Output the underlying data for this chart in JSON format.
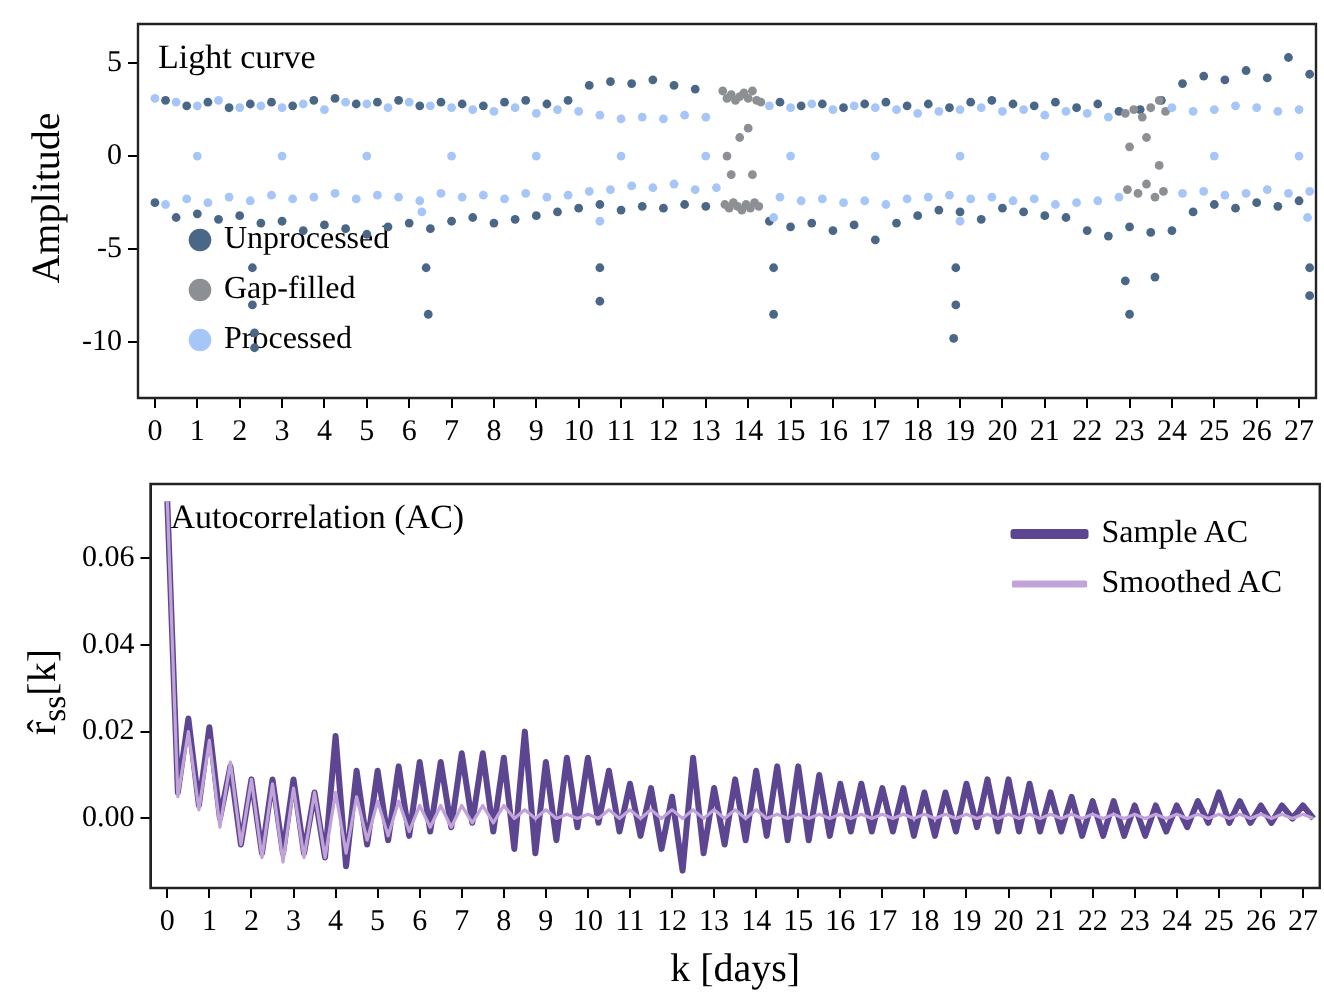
{
  "chart_data": [
    {
      "type": "scatter",
      "annotations": [
        "Light curve"
      ],
      "ylabel": "Amplitude",
      "xlim": [
        -0.4,
        27.4
      ],
      "xticks": [
        0,
        1,
        2,
        3,
        4,
        5,
        6,
        7,
        8,
        9,
        10,
        11,
        12,
        13,
        14,
        15,
        16,
        17,
        18,
        19,
        20,
        21,
        22,
        23,
        24,
        25,
        26,
        27
      ],
      "ylim": [
        -13,
        7.1
      ],
      "yticks": [
        -10,
        -5,
        0,
        5
      ],
      "legend": "bottom left",
      "marker": "circle",
      "series": [
        {
          "name": "Unprocessed",
          "color": "#4a6787",
          "x": [
            0.25,
            0.75,
            1.25,
            1.75,
            2.25,
            2.75,
            3.25,
            3.75,
            4.25,
            4.75,
            5.25,
            5.75,
            6.25,
            6.75,
            7.25,
            7.75,
            8.25,
            8.75,
            9.25,
            9.75,
            10.25,
            10.75,
            11.25,
            11.75,
            12.25,
            12.75,
            14.75,
            15.25,
            15.75,
            16.25,
            16.75,
            17.25,
            17.75,
            18.25,
            18.75,
            19.25,
            19.75,
            20.25,
            20.75,
            21.25,
            21.75,
            22.25,
            22.75,
            23.25,
            23.75,
            24.25,
            24.75,
            25.25,
            25.75,
            26.25,
            26.75,
            27.25,
            0,
            0.5,
            1,
            1.5,
            2,
            2.5,
            3,
            3.5,
            4,
            4.5,
            5,
            5.5,
            6,
            6.5,
            7,
            7.5,
            8,
            8.5,
            9,
            9.5,
            10,
            10.5,
            11,
            11.5,
            12,
            12.5,
            13,
            14.5,
            15,
            15.5,
            16,
            16.5,
            17,
            17.5,
            18,
            18.5,
            19,
            19.5,
            20,
            20.5,
            21,
            21.5,
            22,
            22.5,
            23,
            23.5,
            24,
            24.5,
            25,
            25.5,
            26,
            26.5,
            27,
            2.3,
            2.3,
            2.35,
            2.35,
            6.4,
            6.45,
            10.5,
            10.5,
            14.6,
            14.6,
            18.9,
            18.9,
            18.85,
            22.9,
            23.0,
            23.6,
            27.25,
            27.25
          ],
          "values": [
            3.0,
            2.7,
            2.9,
            2.6,
            2.8,
            2.9,
            2.7,
            3.0,
            3.1,
            2.8,
            2.9,
            3.0,
            2.7,
            2.9,
            2.8,
            2.7,
            2.9,
            3.0,
            2.8,
            3.0,
            3.8,
            4.0,
            3.9,
            4.1,
            3.8,
            3.6,
            2.9,
            2.7,
            2.8,
            2.6,
            2.8,
            2.9,
            2.7,
            2.8,
            2.6,
            2.9,
            3.0,
            2.8,
            2.7,
            2.9,
            2.6,
            2.8,
            2.4,
            2.5,
            3.0,
            3.9,
            4.3,
            4.1,
            4.6,
            4.2,
            5.3,
            4.4,
            -2.5,
            -3.3,
            -3.1,
            -3.4,
            -3.2,
            -3.6,
            -3.5,
            -4.0,
            -3.7,
            -3.9,
            -4.2,
            -3.8,
            -3.6,
            -3.9,
            -3.5,
            -3.3,
            -3.6,
            -3.4,
            -3.2,
            -3.0,
            -2.8,
            -2.6,
            -2.9,
            -2.7,
            -2.8,
            -2.6,
            -2.7,
            -3.5,
            -3.8,
            -3.6,
            -4.0,
            -3.7,
            -4.5,
            -3.6,
            -3.2,
            -2.9,
            -3.0,
            -3.4,
            -2.8,
            -3.0,
            -3.2,
            -3.3,
            -4.0,
            -4.3,
            -3.8,
            -4.1,
            -4.0,
            -3.0,
            -2.6,
            -2.8,
            -2.5,
            -2.7,
            -2.4,
            -6,
            -8,
            -9.5,
            -10.3,
            -6,
            -8.5,
            -6,
            -7.8,
            -6,
            -8.5,
            -6,
            -8,
            -9.8,
            -6.7,
            -8.5,
            -6.5,
            -6,
            -7.5
          ]
        },
        {
          "name": "Gap-filled",
          "color": "#8c8f94",
          "x": [
            13.4,
            13.5,
            13.6,
            13.7,
            13.8,
            13.9,
            14.0,
            14.1,
            14.2,
            14.3,
            13.45,
            13.55,
            13.65,
            13.75,
            13.85,
            13.95,
            14.05,
            14.15,
            14.25,
            13.5,
            13.8,
            14.1,
            13.6,
            14.0,
            22.9,
            23.1,
            23.3,
            23.5,
            23.7,
            23.85,
            22.95,
            23.2,
            23.4,
            23.6,
            23.8,
            23.0,
            23.4,
            23.7
          ],
          "values": [
            3.5,
            3.1,
            3.3,
            3.0,
            3.2,
            3.4,
            3.1,
            3.5,
            3.0,
            2.9,
            -2.6,
            -2.8,
            -2.5,
            -2.7,
            -2.9,
            -2.6,
            -2.8,
            -2.5,
            -2.7,
            0,
            1,
            -1,
            -1,
            1.5,
            2.3,
            2.5,
            2.1,
            2.6,
            3.0,
            2.4,
            -1.8,
            -2.0,
            -1.5,
            -2.2,
            -1.9,
            0.5,
            1.0,
            -0.5
          ]
        },
        {
          "name": "Processed",
          "color": "#a6c6f8",
          "x": [
            0,
            0.5,
            1,
            1.5,
            2,
            2.5,
            3,
            3.5,
            4,
            4.5,
            5,
            5.5,
            6,
            6.5,
            7,
            7.5,
            8,
            8.5,
            9,
            9.5,
            10,
            10.5,
            11,
            11.5,
            12,
            12.5,
            13,
            14.5,
            15,
            15.5,
            16,
            16.5,
            17,
            17.5,
            18,
            18.5,
            19,
            19.5,
            20,
            20.5,
            21,
            21.5,
            22,
            22.5,
            24,
            24.5,
            25,
            25.5,
            26,
            26.5,
            27,
            0.25,
            0.75,
            1.25,
            1.75,
            2.25,
            2.75,
            3.25,
            3.75,
            4.25,
            4.75,
            5.25,
            5.75,
            6.25,
            6.75,
            7.25,
            7.75,
            8.25,
            8.75,
            9.25,
            9.75,
            10.25,
            10.75,
            11.25,
            11.75,
            12.25,
            12.75,
            13.25,
            14.75,
            15.25,
            15.75,
            16.25,
            16.75,
            17.25,
            17.75,
            18.25,
            18.75,
            19.25,
            19.75,
            20.25,
            20.75,
            21.25,
            21.75,
            22.25,
            22.75,
            24.25,
            24.75,
            25.25,
            25.75,
            26.25,
            26.75,
            27.25,
            6.3,
            10.5,
            14.6,
            19.0,
            27.2,
            1,
            3,
            5,
            7,
            9,
            11,
            13,
            15,
            17,
            19,
            21,
            25,
            27
          ],
          "values": [
            3.1,
            2.9,
            2.7,
            3.0,
            2.6,
            2.7,
            2.6,
            2.8,
            2.5,
            2.9,
            2.8,
            2.6,
            2.9,
            2.7,
            2.6,
            2.5,
            2.4,
            2.6,
            2.3,
            2.5,
            2.4,
            2.2,
            2.0,
            2.1,
            2.0,
            2.2,
            2.1,
            2.7,
            2.6,
            2.8,
            2.5,
            2.7,
            2.6,
            2.5,
            2.3,
            2.4,
            2.5,
            2.6,
            2.4,
            2.5,
            2.2,
            2.4,
            2.3,
            2.1,
            2.6,
            2.4,
            2.5,
            2.7,
            2.6,
            2.4,
            2.5,
            -2.6,
            -2.3,
            -2.5,
            -2.2,
            -2.4,
            -2.1,
            -2.3,
            -2.2,
            -2.0,
            -2.3,
            -2.1,
            -2.2,
            -2.4,
            -2.0,
            -2.2,
            -2.1,
            -2.3,
            -2.0,
            -2.2,
            -2.1,
            -1.9,
            -1.8,
            -1.6,
            -1.7,
            -1.5,
            -1.8,
            -1.7,
            -2.2,
            -2.4,
            -2.3,
            -2.5,
            -2.4,
            -2.6,
            -2.3,
            -2.2,
            -2.1,
            -2.3,
            -2.2,
            -2.4,
            -2.3,
            -2.6,
            -2.5,
            -2.4,
            -2.2,
            -2.0,
            -1.9,
            -2.1,
            -2.0,
            -1.8,
            -2.0,
            -1.9,
            -3.0,
            -3.5,
            -3.3,
            -3.5,
            -3.3,
            0,
            0,
            0,
            0,
            0,
            0,
            0,
            0,
            0,
            0,
            0,
            0,
            0
          ]
        }
      ]
    },
    {
      "type": "line",
      "annotations": [
        "Autocorrelation (AC)"
      ],
      "xlabel": "k [days]",
      "ylabel": "r̂$_{ss}$[k]",
      "xlim": [
        -0.4,
        27.4
      ],
      "xticks": [
        0,
        1,
        2,
        3,
        4,
        5,
        6,
        7,
        8,
        9,
        10,
        11,
        12,
        13,
        14,
        15,
        16,
        17,
        18,
        19,
        20,
        21,
        22,
        23,
        24,
        25,
        26,
        27
      ],
      "ylim": [
        -0.016,
        0.077
      ],
      "yticks": [
        {
          "value": 0,
          "label": "0.00"
        },
        0.02,
        0.04,
        0.06
      ],
      "legend": "top right",
      "line_style": "solid",
      "x": [
        0,
        0.25,
        0.5,
        0.75,
        1,
        1.25,
        1.5,
        1.75,
        2,
        2.25,
        2.5,
        2.75,
        3,
        3.25,
        3.5,
        3.75,
        4,
        4.25,
        4.5,
        4.75,
        5,
        5.25,
        5.5,
        5.75,
        6,
        6.25,
        6.5,
        6.75,
        7,
        7.25,
        7.5,
        7.75,
        8,
        8.25,
        8.5,
        8.75,
        9,
        9.25,
        9.5,
        9.75,
        10,
        10.25,
        10.5,
        10.75,
        11,
        11.25,
        11.5,
        11.75,
        12,
        12.25,
        12.5,
        12.75,
        13,
        13.25,
        13.5,
        13.75,
        14,
        14.25,
        14.5,
        14.75,
        15,
        15.25,
        15.5,
        15.75,
        16,
        16.25,
        16.5,
        16.75,
        17,
        17.25,
        17.5,
        17.75,
        18,
        18.25,
        18.5,
        18.75,
        19,
        19.25,
        19.5,
        19.75,
        20,
        20.25,
        20.5,
        20.75,
        21,
        21.25,
        21.5,
        21.75,
        22,
        22.25,
        22.5,
        22.75,
        23,
        23.25,
        23.5,
        23.75,
        24,
        24.25,
        24.5,
        24.75,
        25,
        25.25,
        25.5,
        25.75,
        26,
        26.25,
        26.5,
        26.75,
        27,
        27.25
      ],
      "series": [
        {
          "name": "Sample AC",
          "color": "#5c4591",
          "values": [
            0.073,
            0.006,
            0.023,
            0.003,
            0.021,
            0.0,
            0.012,
            -0.006,
            0.009,
            -0.008,
            0.009,
            -0.008,
            0.009,
            -0.008,
            0.006,
            -0.009,
            0.019,
            -0.011,
            0.011,
            -0.006,
            0.011,
            -0.005,
            0.012,
            -0.004,
            0.013,
            -0.003,
            0.013,
            -0.002,
            0.015,
            -0.001,
            0.015,
            -0.003,
            0.014,
            -0.007,
            0.02,
            -0.008,
            0.013,
            -0.005,
            0.014,
            -0.002,
            0.014,
            -0.001,
            0.011,
            -0.003,
            0.008,
            -0.004,
            0.007,
            -0.007,
            0.005,
            -0.012,
            0.014,
            -0.008,
            0.007,
            -0.006,
            0.009,
            -0.005,
            0.011,
            -0.004,
            0.012,
            -0.005,
            0.012,
            -0.005,
            0.01,
            -0.004,
            0.008,
            -0.003,
            0.008,
            -0.003,
            0.007,
            -0.003,
            0.007,
            -0.004,
            0.006,
            -0.004,
            0.006,
            -0.003,
            0.008,
            -0.002,
            0.009,
            -0.003,
            0.009,
            -0.003,
            0.008,
            -0.003,
            0.006,
            -0.003,
            0.005,
            -0.004,
            0.004,
            -0.004,
            0.004,
            -0.004,
            0.003,
            -0.004,
            0.003,
            -0.003,
            0.003,
            -0.002,
            0.004,
            -0.001,
            0.006,
            -0.001,
            0.004,
            -0.001,
            0.003,
            -0.001,
            0.003,
            0.0,
            0.003,
            0.0
          ]
        },
        {
          "name": "Smoothed AC",
          "color": "#c1a3da",
          "values": [
            0.073,
            0.005,
            0.02,
            0.002,
            0.018,
            -0.002,
            0.013,
            -0.006,
            0.009,
            -0.009,
            0.008,
            -0.01,
            0.007,
            -0.009,
            0.006,
            -0.009,
            0.006,
            -0.008,
            0.005,
            -0.005,
            0.004,
            -0.004,
            0.004,
            -0.003,
            0.003,
            -0.002,
            0.003,
            -0.002,
            0.003,
            -0.001,
            0.003,
            -0.001,
            0.003,
            0.0,
            0.002,
            0.0,
            0.002,
            0.0,
            0.001,
            0.0,
            0.001,
            0.0,
            0.002,
            0.0,
            0.002,
            0.0,
            0.002,
            0.0,
            0.002,
            0.0,
            0.002,
            0.0,
            0.002,
            0.0,
            0.002,
            0.0,
            0.002,
            0.0,
            0.001,
            0.0,
            0.001,
            0.0,
            0.001,
            0.0,
            0.001,
            0.0,
            0.001,
            0.0,
            0.001,
            0.0,
            0.001,
            0.0,
            0.001,
            0.0,
            0.001,
            0.0,
            0.001,
            0.0,
            0.001,
            0.0,
            0.001,
            0.0,
            0.001,
            0.0,
            0.001,
            0.0,
            0.001,
            0.0,
            0.001,
            0.0,
            0.001,
            0.0,
            0.001,
            0.0,
            0.001,
            0.0,
            0.001,
            0.0,
            0.001,
            0.0,
            0.001,
            0.0,
            0.001,
            0.0,
            0.001,
            0.0,
            0.001,
            0.0,
            0.001,
            0.0
          ]
        }
      ]
    }
  ]
}
